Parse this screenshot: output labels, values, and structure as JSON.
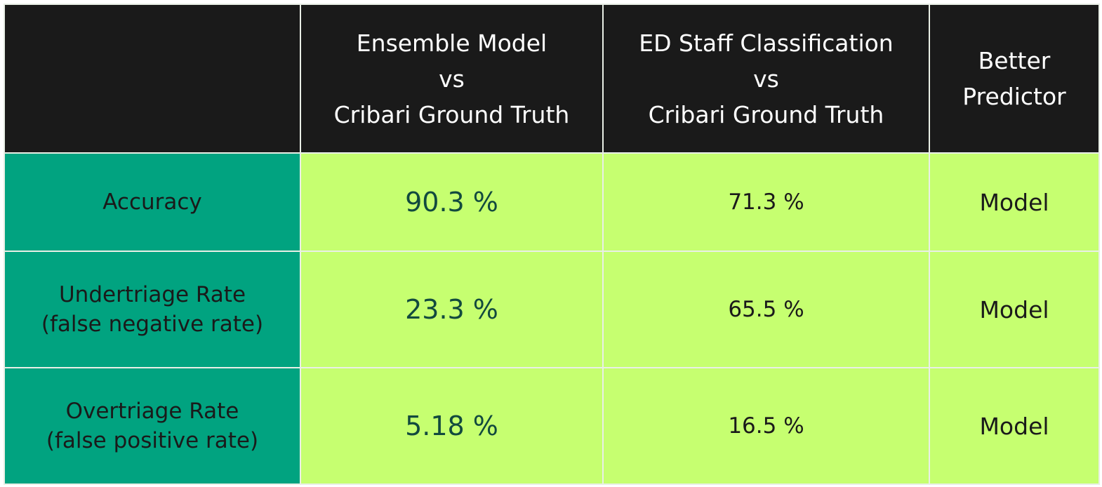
{
  "chart_data": {
    "type": "table",
    "columns": [
      {
        "key": "metric",
        "lines": []
      },
      {
        "key": "model",
        "lines": [
          "Ensemble Model",
          "vs",
          "Cribari Ground Truth"
        ]
      },
      {
        "key": "staff",
        "lines": [
          "ED Staff Classification",
          "vs",
          "Cribari Ground Truth"
        ]
      },
      {
        "key": "better",
        "lines": [
          "Better",
          "Predictor"
        ]
      }
    ],
    "rows": [
      {
        "metric_lines": [
          "Accuracy"
        ],
        "model": "90.3 %",
        "staff": "71.3 %",
        "better": "Model",
        "model_value": 90.3,
        "staff_value": 71.3
      },
      {
        "metric_lines": [
          "Undertriage Rate",
          "(false negative rate)"
        ],
        "model": "23.3 %",
        "staff": "65.5 %",
        "better": "Model",
        "model_value": 23.3,
        "staff_value": 65.5
      },
      {
        "metric_lines": [
          "Overtriage Rate",
          "(false positive rate)"
        ],
        "model": "5.18 %",
        "staff": "16.5 %",
        "better": "Model",
        "model_value": 5.18,
        "staff_value": 16.5
      }
    ],
    "colors": {
      "header_bg": "#1a1a1a",
      "header_text": "#ffffff",
      "label_bg": "#01a380",
      "value_bg": "#c6ff70",
      "model_value_text": "#124a3e",
      "text": "#1a1a1a"
    }
  }
}
